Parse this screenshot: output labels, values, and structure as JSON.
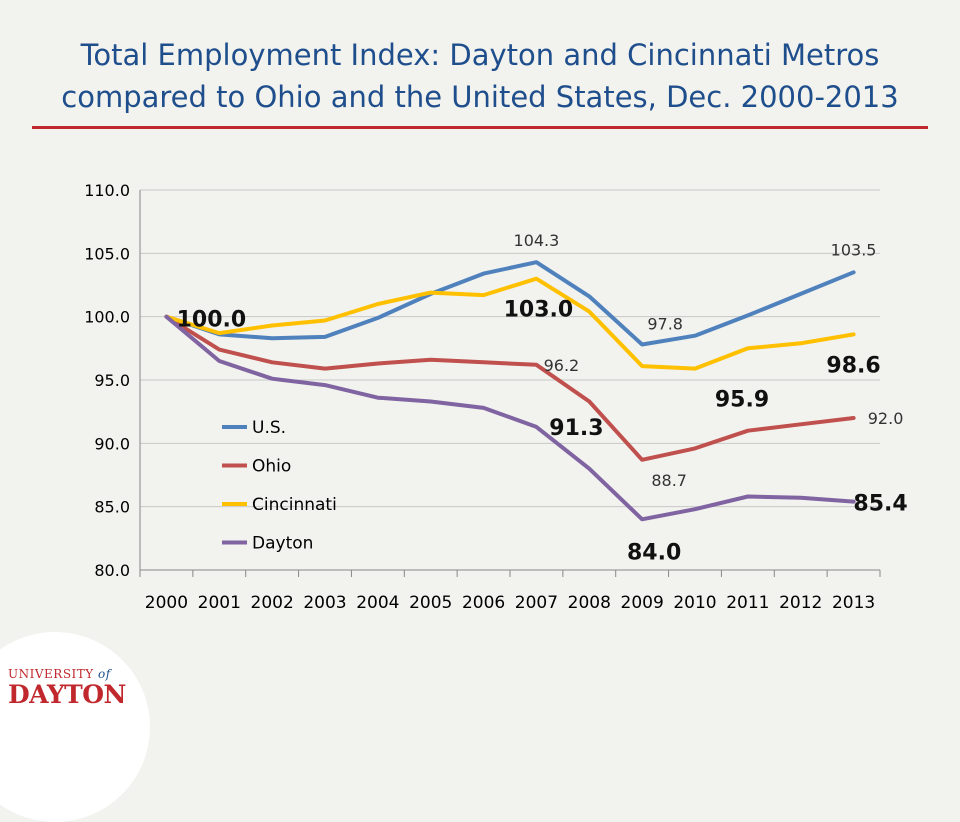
{
  "slide": {
    "title_line1": "Total Employment Index: Dayton and Cincinnati Metros",
    "title_line2": "compared to Ohio and the United States, Dec. 2000-2013",
    "title_color": "#1f4e8c",
    "rule_color": "#c0282d"
  },
  "logo": {
    "text_university": "UNIVERSITY",
    "text_of": "of",
    "text_name": "DAYTON",
    "color": "#c0282d"
  },
  "chart_data": {
    "type": "line",
    "title": "",
    "xlabel": "",
    "ylabel": "",
    "ylim": [
      80,
      110
    ],
    "yticks": [
      "80.0",
      "85.0",
      "90.0",
      "95.0",
      "100.0",
      "105.0",
      "110.0"
    ],
    "categories": [
      "2000",
      "2001",
      "2002",
      "2003",
      "2004",
      "2005",
      "2006",
      "2007",
      "2008",
      "2009",
      "2010",
      "2011",
      "2012",
      "2013"
    ],
    "grid": "horizontal",
    "legend_position": "lower-left",
    "series": [
      {
        "name": "U.S.",
        "color": "#4f81bd",
        "values": [
          100.0,
          98.6,
          98.3,
          98.4,
          99.9,
          101.8,
          103.4,
          104.3,
          101.6,
          97.8,
          98.5,
          100.1,
          101.8,
          103.5
        ]
      },
      {
        "name": "Ohio",
        "color": "#c0504d",
        "values": [
          100.0,
          97.4,
          96.4,
          95.9,
          96.3,
          96.6,
          96.4,
          96.2,
          93.3,
          88.7,
          89.6,
          91.0,
          91.5,
          92.0
        ]
      },
      {
        "name": "Cincinnati",
        "color": "#ffc000",
        "values": [
          100.0,
          98.7,
          99.3,
          99.7,
          101.0,
          101.9,
          101.7,
          103.0,
          100.4,
          96.1,
          95.9,
          97.5,
          97.9,
          98.6
        ]
      },
      {
        "name": "Dayton",
        "color": "#8064a2",
        "values": [
          100.0,
          96.5,
          95.1,
          94.6,
          93.6,
          93.3,
          92.8,
          91.3,
          88.0,
          84.0,
          84.8,
          85.8,
          85.7,
          85.4
        ]
      }
    ],
    "annotations": [
      {
        "text": "100.0",
        "series": 2,
        "index": 0,
        "bold": true
      },
      {
        "text": "104.3",
        "series": 0,
        "index": 7,
        "bold": false
      },
      {
        "text": "103.0",
        "series": 2,
        "index": 7,
        "bold": true
      },
      {
        "text": "96.2",
        "series": 1,
        "index": 7,
        "bold": false
      },
      {
        "text": "91.3",
        "series": 3,
        "index": 7,
        "bold": true
      },
      {
        "text": "97.8",
        "series": 0,
        "index": 9,
        "bold": false
      },
      {
        "text": "95.9",
        "series": 2,
        "index": 10,
        "bold": true
      },
      {
        "text": "88.7",
        "series": 1,
        "index": 9,
        "bold": false
      },
      {
        "text": "84.0",
        "series": 3,
        "index": 9,
        "bold": true
      },
      {
        "text": "103.5",
        "series": 0,
        "index": 13,
        "bold": false
      },
      {
        "text": "98.6",
        "series": 2,
        "index": 13,
        "bold": true
      },
      {
        "text": "92.0",
        "series": 1,
        "index": 13,
        "bold": false
      },
      {
        "text": "85.4",
        "series": 3,
        "index": 13,
        "bold": true
      }
    ]
  }
}
